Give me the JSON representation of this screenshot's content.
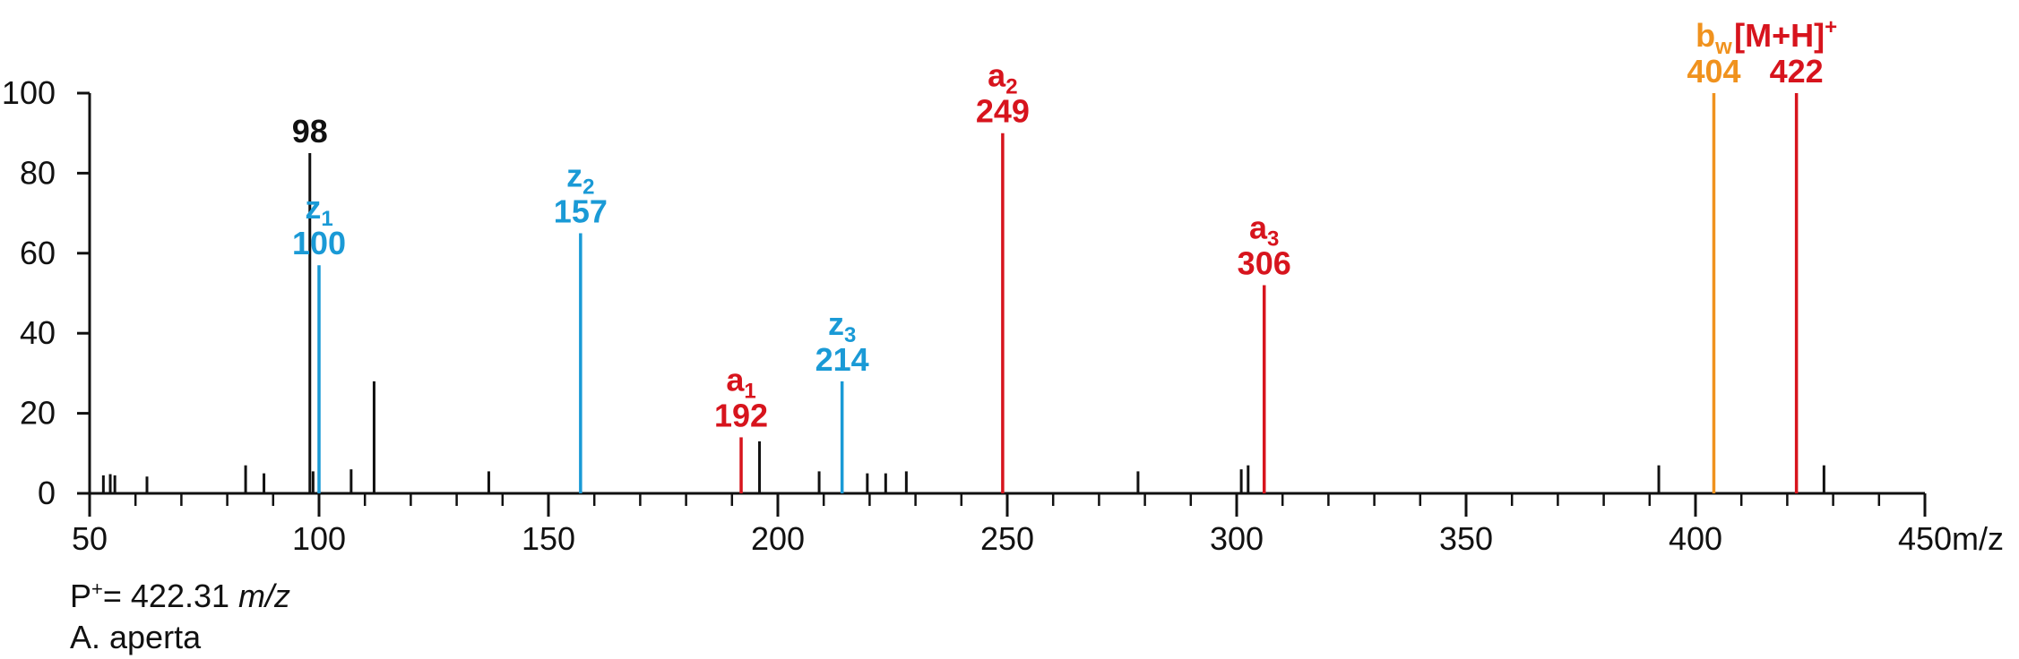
{
  "chart_data": {
    "type": "bar",
    "x_axis": {
      "min": 50,
      "max": 450,
      "major_ticks": [
        50,
        100,
        150,
        200,
        250,
        300,
        350,
        400,
        450
      ],
      "minor_step": 10,
      "unit_label": "m/z"
    },
    "y_axis": {
      "min": 0,
      "max": 100,
      "ticks": [
        0,
        20,
        40,
        60,
        80,
        100
      ]
    },
    "grid": false,
    "colors": {
      "unassigned": "#111111",
      "z_ion": "#1a9ad6",
      "a_ion": "#d7141d",
      "b_ion": "#f0921e"
    },
    "peaks": [
      {
        "mz": 53,
        "intensity": 4.5,
        "group": "unassigned"
      },
      {
        "mz": 54.5,
        "intensity": 4.8,
        "group": "unassigned"
      },
      {
        "mz": 55.5,
        "intensity": 4.5,
        "group": "unassigned"
      },
      {
        "mz": 62.5,
        "intensity": 4.2,
        "group": "unassigned"
      },
      {
        "mz": 84,
        "intensity": 7,
        "group": "unassigned"
      },
      {
        "mz": 88,
        "intensity": 5,
        "group": "unassigned"
      },
      {
        "mz": 98,
        "intensity": 85,
        "group": "unassigned",
        "label": "98"
      },
      {
        "mz": 98.7,
        "intensity": 5.5,
        "group": "unassigned"
      },
      {
        "mz": 100,
        "intensity": 57,
        "group": "z_ion",
        "ion": "z",
        "sub": "1",
        "label": "100"
      },
      {
        "mz": 107,
        "intensity": 6,
        "group": "unassigned"
      },
      {
        "mz": 112,
        "intensity": 28,
        "group": "unassigned"
      },
      {
        "mz": 137,
        "intensity": 5.5,
        "group": "unassigned"
      },
      {
        "mz": 157,
        "intensity": 65,
        "group": "z_ion",
        "ion": "z",
        "sub": "2",
        "label": "157"
      },
      {
        "mz": 192,
        "intensity": 14,
        "group": "a_ion",
        "ion": "a",
        "sub": "1",
        "label": "192"
      },
      {
        "mz": 196,
        "intensity": 13,
        "group": "unassigned"
      },
      {
        "mz": 209,
        "intensity": 5.5,
        "group": "unassigned"
      },
      {
        "mz": 214,
        "intensity": 28,
        "group": "z_ion",
        "ion": "z",
        "sub": "3",
        "label": "214"
      },
      {
        "mz": 219.5,
        "intensity": 5,
        "group": "unassigned"
      },
      {
        "mz": 223.5,
        "intensity": 5,
        "group": "unassigned"
      },
      {
        "mz": 228,
        "intensity": 5.5,
        "group": "unassigned"
      },
      {
        "mz": 249,
        "intensity": 90,
        "group": "a_ion",
        "ion": "a",
        "sub": "2",
        "label": "249"
      },
      {
        "mz": 278.5,
        "intensity": 5.5,
        "group": "unassigned"
      },
      {
        "mz": 301,
        "intensity": 6,
        "group": "unassigned"
      },
      {
        "mz": 302.5,
        "intensity": 7,
        "group": "unassigned"
      },
      {
        "mz": 306,
        "intensity": 52,
        "group": "a_ion",
        "ion": "a",
        "sub": "3",
        "label": "306"
      },
      {
        "mz": 392,
        "intensity": 7,
        "group": "unassigned"
      },
      {
        "mz": 404,
        "intensity": 100,
        "group": "b_ion",
        "ion": "b",
        "sub": "w",
        "label": "404"
      },
      {
        "mz": 422,
        "intensity": 100,
        "group": "a_ion",
        "ion": "[M+H]",
        "sup": "+",
        "label": "422"
      },
      {
        "mz": 428,
        "intensity": 7,
        "group": "unassigned"
      }
    ]
  },
  "caption": {
    "precursor_prefix": "P",
    "precursor_sup": "+",
    "precursor_value": "= 422.31 ",
    "precursor_unit": "m/z",
    "species": "A. aperta"
  }
}
